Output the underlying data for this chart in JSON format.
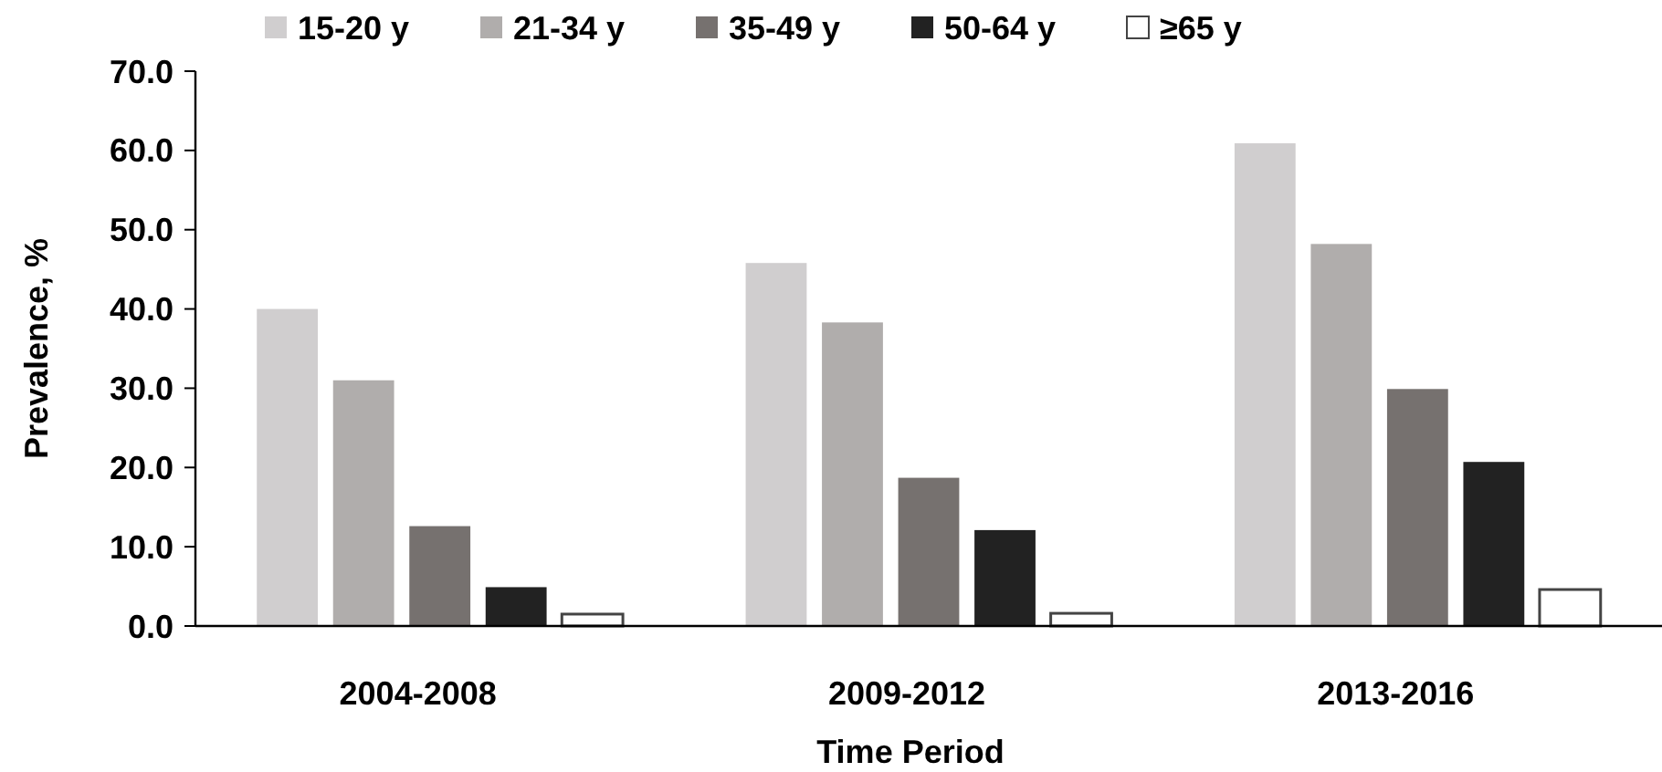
{
  "chart_data": {
    "type": "bar",
    "xlabel": "Time Period",
    "ylabel": "Prevalence, %",
    "categories": [
      "2004-2008",
      "2009-2012",
      "2013-2016"
    ],
    "series": [
      {
        "name": "15-20 y",
        "color": "#d0cecf",
        "values": [
          40.0,
          45.8,
          60.9
        ]
      },
      {
        "name": "21-34 y",
        "color": "#b0adac",
        "values": [
          31.0,
          38.3,
          48.2
        ]
      },
      {
        "name": "35-49 y",
        "color": "#76716f",
        "values": [
          12.6,
          18.7,
          29.9
        ]
      },
      {
        "name": "50-64 y",
        "color": "#222222",
        "values": [
          4.9,
          12.1,
          20.7
        ]
      },
      {
        "name": "≥65 y",
        "color": "#ffffff",
        "values": [
          1.5,
          1.6,
          4.6
        ]
      }
    ],
    "ylim": [
      0,
      70
    ],
    "yticks": [
      {
        "value": 0,
        "label": "0.0"
      },
      {
        "value": 10,
        "label": "10.0"
      },
      {
        "value": 20,
        "label": "20.0"
      },
      {
        "value": 30,
        "label": "30.0"
      },
      {
        "value": 40,
        "label": "40.0"
      },
      {
        "value": 50,
        "label": "50.0"
      },
      {
        "value": 60,
        "label": "60.0"
      },
      {
        "value": 70,
        "label": "70.0"
      }
    ],
    "grid": false,
    "legend": "top"
  }
}
